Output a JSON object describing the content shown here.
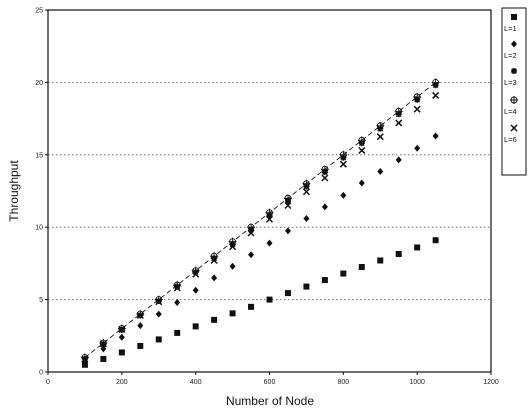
{
  "chart_data": {
    "type": "scatter",
    "xlabel": "Number of Node",
    "ylabel": "Throughput",
    "xlim": [
      0,
      1200
    ],
    "ylim": [
      0,
      25
    ],
    "xticks": [
      "0",
      "200",
      "400",
      "600",
      "800",
      "1000",
      "1200"
    ],
    "yticks": [
      "0",
      "5",
      "10",
      "15",
      "20",
      "25"
    ],
    "grid": "horizontal dotted",
    "legend_position": "right, top",
    "x": [
      100,
      150,
      200,
      250,
      300,
      350,
      400,
      450,
      500,
      550,
      600,
      650,
      700,
      750,
      800,
      850,
      900,
      950,
      1000,
      1050
    ],
    "series": [
      {
        "name": "L=1",
        "marker": "square",
        "values": [
          0.5,
          0.9,
          1.35,
          1.8,
          2.25,
          2.7,
          3.15,
          3.6,
          4.05,
          4.5,
          5.0,
          5.45,
          5.9,
          6.35,
          6.8,
          7.25,
          7.7,
          8.15,
          8.6,
          9.1
        ]
      },
      {
        "name": "L=2",
        "marker": "diamond",
        "values": [
          0.7,
          1.6,
          2.4,
          3.2,
          4.0,
          4.8,
          5.65,
          6.5,
          7.3,
          8.1,
          8.9,
          9.75,
          10.6,
          11.4,
          12.2,
          13.05,
          13.85,
          14.65,
          15.45,
          16.3
        ]
      },
      {
        "name": "L=3",
        "marker": "asterisk",
        "values": [
          0.9,
          1.9,
          2.9,
          3.9,
          4.9,
          5.9,
          6.9,
          7.85,
          8.8,
          9.8,
          10.8,
          11.8,
          12.8,
          13.8,
          14.8,
          15.8,
          16.8,
          17.8,
          18.8,
          19.8
        ]
      },
      {
        "name": "L=4",
        "marker": "circle-plus",
        "values": [
          1.0,
          2.0,
          3.0,
          4.0,
          5.0,
          6.0,
          7.0,
          8.0,
          9.0,
          10.0,
          11.0,
          12.0,
          13.0,
          14.0,
          15.0,
          16.0,
          17.0,
          18.0,
          19.0,
          20.0
        ]
      },
      {
        "name": "L=6",
        "marker": "x",
        "values": [
          0.9,
          1.95,
          2.95,
          3.9,
          4.85,
          5.8,
          6.75,
          7.7,
          8.65,
          9.6,
          10.55,
          11.5,
          12.45,
          13.4,
          14.35,
          15.3,
          16.25,
          17.2,
          18.15,
          19.1
        ]
      }
    ],
    "reference_line": {
      "style": "dashed",
      "from": [
        100,
        1.0
      ],
      "to": [
        1050,
        20.0
      ]
    }
  }
}
